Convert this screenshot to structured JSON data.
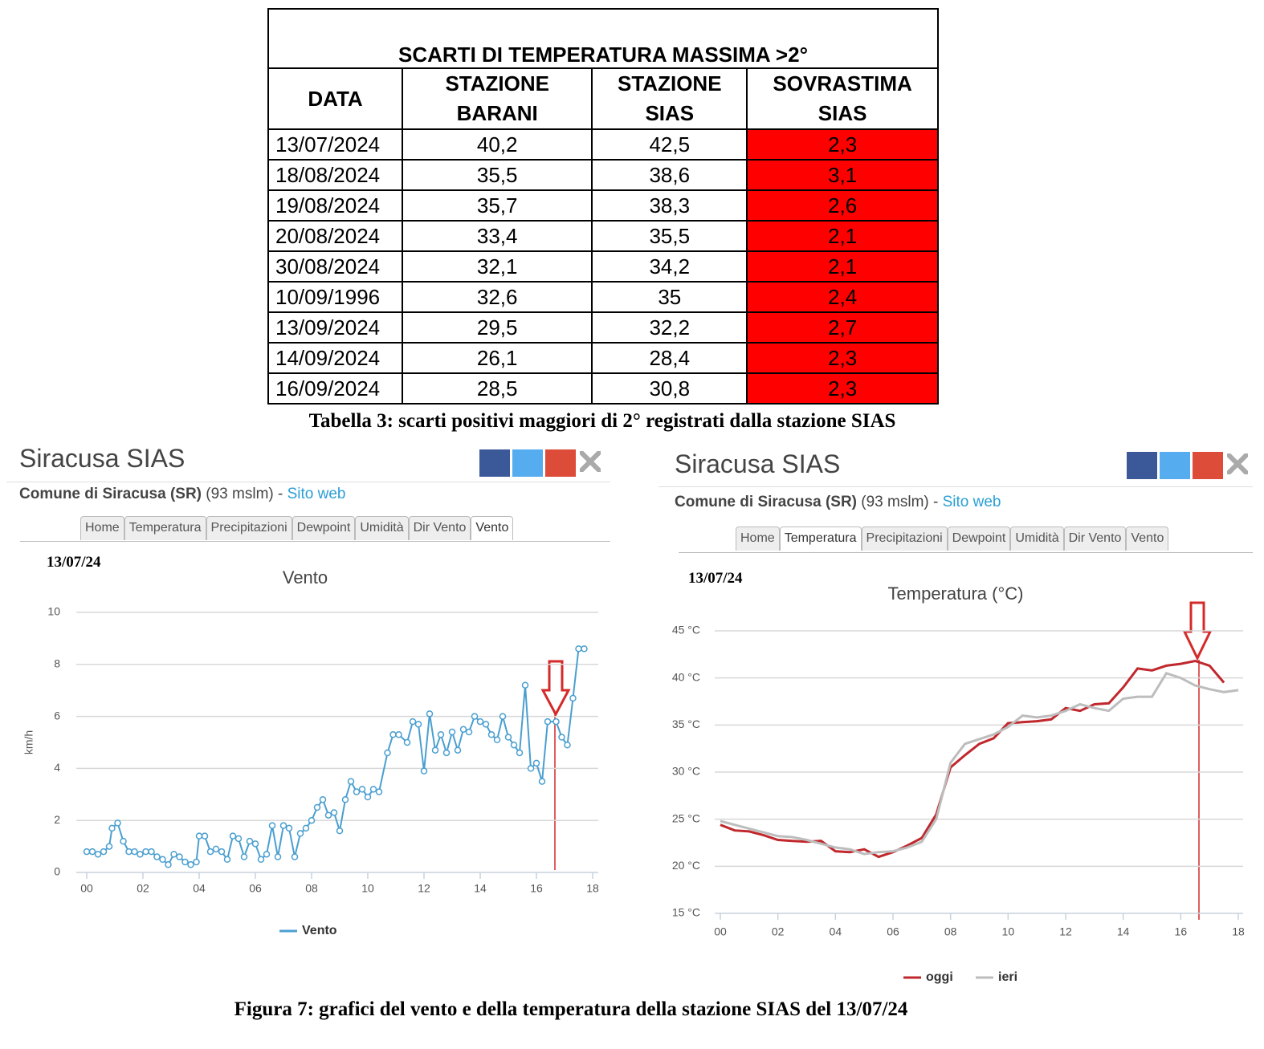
{
  "table": {
    "title": "SCARTI DI TEMPERATURA MASSIMA >2°",
    "headers": [
      "DATA",
      "STAZIONE BARANI",
      "STAZIONE SIAS",
      "SOVRASTIMA SIAS"
    ],
    "rows": [
      [
        "13/07/2024",
        "40,2",
        "42,5",
        "2,3"
      ],
      [
        "18/08/2024",
        "35,5",
        "38,6",
        "3,1"
      ],
      [
        "19/08/2024",
        "35,7",
        "38,3",
        "2,6"
      ],
      [
        "20/08/2024",
        "33,4",
        "35,5",
        "2,1"
      ],
      [
        "30/08/2024",
        "32,1",
        "34,2",
        "2,1"
      ],
      [
        "10/09/1996",
        "32,6",
        "35",
        "2,4"
      ],
      [
        "13/09/2024",
        "29,5",
        "32,2",
        "2,7"
      ],
      [
        "14/09/2024",
        "26,1",
        "28,4",
        "2,3"
      ],
      [
        "16/09/2024",
        "28,5",
        "30,8",
        "2,3"
      ]
    ]
  },
  "table_caption": "Tabella 3: scarti positivi maggiori di 2° registrati dalla stazione SIAS",
  "panels": [
    {
      "site": "Siracusa SIAS",
      "location": "Comune di Siracusa (SR)",
      "altitude": "(93 mslm) -",
      "link": "Sito web",
      "tabs": [
        "Home",
        "Temperatura",
        "Precipitazioni",
        "Dewpoint",
        "Umidità",
        "Dir Vento",
        "Vento"
      ],
      "active_tab": 6,
      "date": "13/07/24",
      "chart": {
        "type": "line",
        "markers": true,
        "title": "Vento",
        "y_label": "km/h",
        "x": [
          0,
          0.2,
          0.4,
          0.6,
          0.8,
          0.9,
          1.1,
          1.3,
          1.5,
          1.7,
          1.9,
          2.1,
          2.3,
          2.5,
          2.7,
          2.9,
          3.1,
          3.3,
          3.5,
          3.7,
          3.9,
          4.0,
          4.2,
          4.4,
          4.6,
          4.8,
          5.0,
          5.2,
          5.4,
          5.6,
          5.8,
          6.0,
          6.2,
          6.4,
          6.6,
          6.8,
          7.0,
          7.2,
          7.4,
          7.6,
          7.8,
          8.0,
          8.2,
          8.4,
          8.6,
          8.8,
          9.0,
          9.2,
          9.4,
          9.6,
          9.8,
          10.0,
          10.2,
          10.4,
          10.7,
          10.9,
          11.1,
          11.4,
          11.6,
          11.8,
          12.0,
          12.2,
          12.4,
          12.6,
          12.8,
          13.0,
          13.2,
          13.4,
          13.6,
          13.8,
          14.0,
          14.2,
          14.4,
          14.6,
          14.8,
          15.0,
          15.2,
          15.4,
          15.6,
          15.8,
          16.0,
          16.2,
          16.4,
          16.7,
          16.9,
          17.1,
          17.3,
          17.5,
          17.7
        ],
        "xlim": [
          -0.2,
          18
        ],
        "xticks": [
          {
            "value": 0,
            "label": "00"
          },
          {
            "value": 2,
            "label": "02"
          },
          {
            "value": 4,
            "label": "04"
          },
          {
            "value": 6,
            "label": "06"
          },
          {
            "value": 8,
            "label": "08"
          },
          {
            "value": 10,
            "label": "10"
          },
          {
            "value": 12,
            "label": "12"
          },
          {
            "value": 14,
            "label": "14"
          },
          {
            "value": 16,
            "label": "16"
          },
          {
            "value": 18,
            "label": "18"
          }
        ],
        "ylim": [
          0,
          10
        ],
        "yticks": [
          0,
          2,
          4,
          6,
          8,
          10
        ],
        "series": [
          {
            "name": "Vento",
            "color": "#4a9fd0",
            "values": [
              0.8,
              0.8,
              0.7,
              0.8,
              1.0,
              1.7,
              1.9,
              1.2,
              0.8,
              0.8,
              0.7,
              0.8,
              0.8,
              0.6,
              0.5,
              0.3,
              0.7,
              0.6,
              0.4,
              0.3,
              0.4,
              1.4,
              1.4,
              0.8,
              0.9,
              0.8,
              0.5,
              1.4,
              1.3,
              0.6,
              1.2,
              1.1,
              0.5,
              0.7,
              1.8,
              0.6,
              1.8,
              1.7,
              0.6,
              1.5,
              1.7,
              2.0,
              2.5,
              2.8,
              2.2,
              2.3,
              1.6,
              2.8,
              3.5,
              3.1,
              3.2,
              2.9,
              3.2,
              3.1,
              4.6,
              5.3,
              5.3,
              5.0,
              5.8,
              5.7,
              3.9,
              6.1,
              4.7,
              5.3,
              4.6,
              5.4,
              4.7,
              5.5,
              5.4,
              6.0,
              5.8,
              5.7,
              5.3,
              5.1,
              6.0,
              5.2,
              4.9,
              4.6,
              7.2,
              4.0,
              4.2,
              3.5,
              5.8,
              5.8,
              5.2,
              4.9,
              6.7,
              8.6,
              8.6
            ]
          }
        ]
      }
    },
    {
      "site": "Siracusa SIAS",
      "location": "Comune di Siracusa (SR)",
      "altitude": "(93 mslm) -",
      "link": "Sito web",
      "tabs": [
        "Home",
        "Temperatura",
        "Precipitazioni",
        "Dewpoint",
        "Umidità",
        "Dir Vento",
        "Vento"
      ],
      "active_tab": 1,
      "date": "13/07/24",
      "chart": {
        "type": "line",
        "markers": false,
        "title": "Temperatura (°C)",
        "x": [
          0,
          0.5,
          1,
          1.5,
          2,
          2.5,
          3,
          3.5,
          4,
          4.5,
          5,
          5.5,
          6,
          6.5,
          7,
          7.5,
          8,
          8.5,
          9,
          9.5,
          10,
          10.5,
          11,
          11.5,
          12,
          12.5,
          13,
          13.5,
          14,
          14.5,
          15,
          15.5,
          16,
          16.5,
          17,
          17.5,
          18
        ],
        "xlim": [
          0,
          18
        ],
        "xticks": [
          {
            "value": 0,
            "label": "00"
          },
          {
            "value": 2,
            "label": "02"
          },
          {
            "value": 4,
            "label": "04"
          },
          {
            "value": 6,
            "label": "06"
          },
          {
            "value": 8,
            "label": "08"
          },
          {
            "value": 10,
            "label": "10"
          },
          {
            "value": 12,
            "label": "12"
          },
          {
            "value": 14,
            "label": "14"
          },
          {
            "value": 16,
            "label": "16"
          },
          {
            "value": 18,
            "label": "18"
          }
        ],
        "ylim": [
          15,
          45
        ],
        "yticks": [
          {
            "value": 15,
            "label": "15 °C"
          },
          {
            "value": 20,
            "label": "20 °C"
          },
          {
            "value": 25,
            "label": "25 °C"
          },
          {
            "value": 30,
            "label": "30 °C"
          },
          {
            "value": 35,
            "label": "35 °C"
          },
          {
            "value": 40,
            "label": "40 °C"
          },
          {
            "value": 45,
            "label": "45 °C"
          }
        ],
        "series": [
          {
            "name": "oggi",
            "color": "#c0282d",
            "values": [
              24.4,
              23.8,
              23.7,
              23.3,
              22.8,
              22.7,
              22.6,
              22.7,
              21.6,
              21.5,
              21.8,
              21.0,
              21.5,
              22.2,
              23.0,
              25.5,
              30.5,
              31.8,
              33.0,
              33.6,
              35.2,
              35.3,
              35.4,
              35.6,
              36.8,
              36.5,
              37.2,
              37.3,
              39.0,
              41.0,
              40.8,
              41.3,
              41.5,
              41.8,
              41.3,
              39.5,
              null
            ]
          },
          {
            "name": "ieri",
            "color": "#bdbdbd",
            "values": [
              24.8,
              24.4,
              24.0,
              23.6,
              23.2,
              23.1,
              22.8,
              22.4,
              22.0,
              21.8,
              21.3,
              21.5,
              21.6,
              22.0,
              22.6,
              25.0,
              31.0,
              33.0,
              33.5,
              34.0,
              34.8,
              36.0,
              35.8,
              36.0,
              36.5,
              37.2,
              36.8,
              36.5,
              37.8,
              38.0,
              38.0,
              40.5,
              40.0,
              39.2,
              38.8,
              38.5,
              38.7
            ]
          }
        ]
      }
    }
  ],
  "figure_caption": "Figura 7: grafici del vento e della temperatura della stazione SIAS del 13/07/24"
}
